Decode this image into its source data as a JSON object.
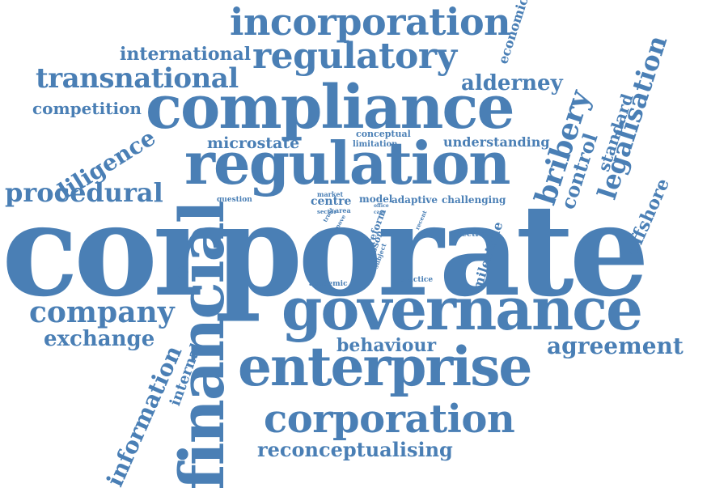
{
  "colors": {
    "word": "#4a7fb5",
    "background": "#ffffff"
  },
  "words": [
    "corporate",
    "governance",
    "compliance",
    "regulation",
    "enterprise",
    "financial",
    "corporation",
    "incorporation",
    "regulatory",
    "transnational",
    "international",
    "alderney",
    "economic",
    "competition",
    "diligence",
    "procedural",
    "microstate",
    "conceptual",
    "limitation",
    "understanding",
    "bribery",
    "control",
    "standard",
    "legalisation",
    "offshore",
    "question",
    "market",
    "centre",
    "model",
    "adaptive",
    "challenging",
    "sector",
    "area",
    "trust",
    "move",
    "reform",
    "office",
    "case",
    "recent",
    "lesson",
    "subject",
    "effective",
    "milestone",
    "academic",
    "practice",
    "company",
    "exchange",
    "behaviour",
    "agreement",
    "information",
    "internal",
    "reconceptualising"
  ]
}
